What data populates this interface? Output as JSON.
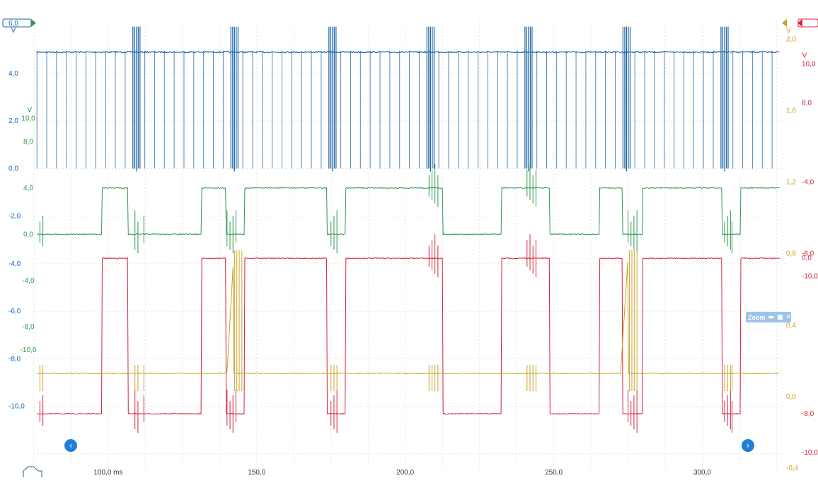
{
  "chart_data": {
    "type": "line",
    "x_range": [
      75,
      328
    ],
    "x_ticks": [
      {
        "value": 100,
        "label": "100,0 ms"
      },
      {
        "value": 150,
        "label": "150,0"
      },
      {
        "value": 200,
        "label": "200,0"
      },
      {
        "value": 250,
        "label": "250,0"
      },
      {
        "value": 300,
        "label": "300,0"
      }
    ],
    "grid": true,
    "axes": [
      {
        "id": "blue",
        "side": "left",
        "color": "#1a63a8",
        "unit": "V",
        "top_value": "6,0",
        "range": [
          -12.6,
          6.2
        ],
        "ticks": [
          {
            "v": 4,
            "l": "4,0"
          },
          {
            "v": 2,
            "l": "2,0"
          },
          {
            "v": 0,
            "l": "0,0"
          },
          {
            "v": -2,
            "l": "-2,0"
          },
          {
            "v": -4,
            "l": "-4,0"
          },
          {
            "v": -6,
            "l": "-6,0"
          },
          {
            "v": -8,
            "l": "-8,0"
          },
          {
            "v": -10,
            "l": "-10,0"
          }
        ]
      },
      {
        "id": "green",
        "side": "left",
        "color": "#2a9a4a",
        "unit": "V",
        "range": [
          -20.2,
          18.4
        ],
        "ticks": [
          {
            "v": 10,
            "l": "10,0"
          },
          {
            "v": 8,
            "l": "8,0"
          },
          {
            "v": 4,
            "l": "4,0"
          },
          {
            "v": 0,
            "l": "0,0"
          },
          {
            "v": -4,
            "l": "-4,0"
          },
          {
            "v": -8,
            "l": "-8,0"
          },
          {
            "v": -10,
            "l": "-10,0"
          }
        ]
      },
      {
        "id": "red",
        "side": "right",
        "color": "#d4243b",
        "unit": "V",
        "range": [
          -10.8,
          12.2
        ],
        "ticks": [
          {
            "v": 10,
            "l": "10,0"
          },
          {
            "v": 8,
            "l": "8,0"
          },
          {
            "v": 0,
            "l": "0,0"
          },
          {
            "v": -8,
            "l": "-8,0"
          },
          {
            "v": -10,
            "l": "-10,0"
          }
        ]
      },
      {
        "id": "yellow",
        "side": "right",
        "color": "#c9a227",
        "unit": "V",
        "range": [
          -0.4,
          2.1
        ],
        "ticks": [
          {
            "v": 2,
            "l": "2,0"
          },
          {
            "v": 1.6,
            "l": "1,6"
          },
          {
            "v": 1.2,
            "l": "1,2"
          },
          {
            "v": 0.8,
            "l": "0,8"
          },
          {
            "v": 0.4,
            "l": "0,4"
          },
          {
            "v": 0,
            "l": "0,0"
          },
          {
            "v": -0.4,
            "l": "-0,4"
          }
        ]
      },
      {
        "id": "red_aux",
        "side": "right",
        "color": "#d4243b",
        "ticks": [
          {
            "l": "-4,0"
          },
          {
            "l": "-8,0"
          },
          {
            "l": "-10,0"
          }
        ]
      }
    ],
    "series": [
      {
        "id": "blue",
        "axis": "blue",
        "color": "#1a63a8",
        "high": 4.9,
        "low": 0.0,
        "pulse_spacing": 3.3,
        "x_start": 76,
        "x_end": 326,
        "bursts": [
          109.5,
          142.5,
          175.5,
          208.5,
          241.5,
          274.5,
          307.5
        ]
      },
      {
        "id": "red",
        "axis": "red",
        "color": "#d4243b",
        "high": 0.0,
        "low": -8.0,
        "x_start": 76,
        "x_end": 326,
        "high_intervals": [
          [
            98,
            106.5
          ],
          [
            131.5,
            139.5
          ],
          [
            146,
            173.5
          ],
          [
            180,
            212.5
          ],
          [
            232.5,
            248.5
          ],
          [
            265.5,
            273
          ],
          [
            280,
            306.5
          ],
          [
            313,
            326
          ]
        ],
        "spikes": [
          77,
          78,
          109,
          110,
          112,
          140,
          141,
          142,
          143,
          175,
          176,
          177,
          208,
          209,
          210,
          211,
          241,
          242,
          243,
          244,
          275,
          276,
          277,
          278,
          307.5,
          308.5,
          309.5,
          310
        ]
      },
      {
        "id": "green",
        "axis": "green",
        "color": "#2a9a4a",
        "high": 4.0,
        "low": 0.0,
        "x_start": 76,
        "x_end": 326,
        "high_intervals": [
          [
            98,
            106.5
          ],
          [
            131.5,
            139.5
          ],
          [
            146,
            173.5
          ],
          [
            180,
            212.5
          ],
          [
            232.5,
            248.5
          ],
          [
            265.5,
            273
          ],
          [
            280,
            306.5
          ],
          [
            313,
            326
          ]
        ],
        "spikes": [
          77,
          78,
          109,
          110,
          112,
          140,
          141,
          142,
          143,
          175,
          176,
          177,
          208,
          209,
          210,
          211,
          241,
          242,
          243,
          244,
          275,
          276,
          277,
          278,
          307.5,
          308.5,
          309.5,
          310
        ]
      },
      {
        "id": "yellow",
        "axis": "yellow",
        "color": "#c9a227",
        "base": 0.13,
        "x_start": 76,
        "x_end": 326,
        "ramps": [
          [
            140,
            142.2
          ],
          [
            272.5,
            275
          ]
        ],
        "ramp_peak": 0.78,
        "spikes": [
          77,
          78,
          109,
          110,
          112,
          142.5,
          143.3,
          144.1,
          145,
          175,
          176,
          177,
          208,
          209,
          210,
          211,
          241,
          242,
          243,
          244,
          275.5,
          276.3,
          277.1,
          278,
          307.5,
          308.5,
          309.5,
          310
        ]
      }
    ]
  },
  "controls": {
    "nav_left_icon": "chevron-left-icon",
    "nav_right_icon": "chevron-right-icon",
    "zoom_label": "Zoom",
    "zoom_icons": [
      "minimize-icon",
      "maximize-icon",
      "close-icon"
    ]
  }
}
